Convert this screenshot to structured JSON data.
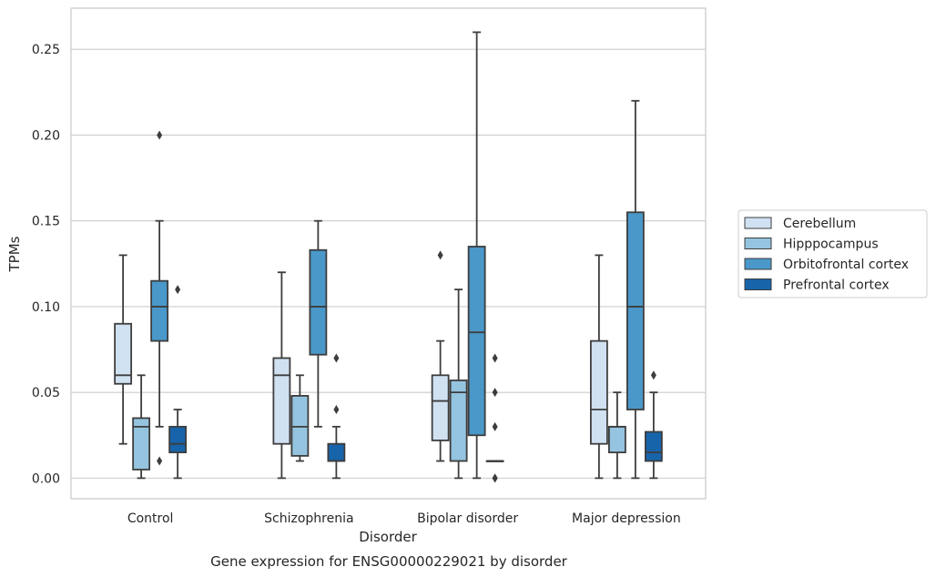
{
  "chart_data": {
    "type": "box",
    "caption": "Gene expression for ENSG00000229021 by disorder",
    "xlabel": "Disorder",
    "ylabel": "TPMs",
    "ylim": [
      -0.012,
      0.274
    ],
    "yticks": [
      0.0,
      0.05,
      0.1,
      0.15,
      0.2,
      0.25
    ],
    "ytick_labels": [
      "0.00",
      "0.05",
      "0.10",
      "0.15",
      "0.20",
      "0.25"
    ],
    "grid": true,
    "legend_position": "right",
    "categories": [
      "Control",
      "Schizophrenia",
      "Bipolar disorder",
      "Major depression"
    ],
    "series": [
      {
        "name": "Cerebellum",
        "color": "#d0e1f2",
        "boxes": [
          {
            "whislo": 0.02,
            "q1": 0.055,
            "med": 0.06,
            "q3": 0.09,
            "whishi": 0.13,
            "fliers": []
          },
          {
            "whislo": 0.0,
            "q1": 0.02,
            "med": 0.06,
            "q3": 0.07,
            "whishi": 0.12,
            "fliers": []
          },
          {
            "whislo": 0.01,
            "q1": 0.022,
            "med": 0.045,
            "q3": 0.06,
            "whishi": 0.08,
            "fliers": [
              0.13
            ]
          },
          {
            "whislo": 0.0,
            "q1": 0.02,
            "med": 0.04,
            "q3": 0.08,
            "whishi": 0.13,
            "fliers": []
          }
        ]
      },
      {
        "name": "Hipppocampus",
        "color": "#94c4df",
        "boxes": [
          {
            "whislo": 0.0,
            "q1": 0.005,
            "med": 0.03,
            "q3": 0.035,
            "whishi": 0.06,
            "fliers": []
          },
          {
            "whislo": 0.01,
            "q1": 0.013,
            "med": 0.03,
            "q3": 0.048,
            "whishi": 0.06,
            "fliers": []
          },
          {
            "whislo": 0.0,
            "q1": 0.01,
            "med": 0.05,
            "q3": 0.057,
            "whishi": 0.11,
            "fliers": []
          },
          {
            "whislo": 0.0,
            "q1": 0.015,
            "med": 0.03,
            "q3": 0.03,
            "whishi": 0.05,
            "fliers": []
          }
        ]
      },
      {
        "name": "Orbitofrontal cortex",
        "color": "#4a98c9",
        "boxes": [
          {
            "whislo": 0.03,
            "q1": 0.08,
            "med": 0.1,
            "q3": 0.115,
            "whishi": 0.15,
            "fliers": [
              0.2,
              0.01
            ]
          },
          {
            "whislo": 0.03,
            "q1": 0.072,
            "med": 0.1,
            "q3": 0.133,
            "whishi": 0.15,
            "fliers": []
          },
          {
            "whislo": 0.0,
            "q1": 0.025,
            "med": 0.085,
            "q3": 0.135,
            "whishi": 0.26,
            "fliers": []
          },
          {
            "whislo": 0.0,
            "q1": 0.04,
            "med": 0.1,
            "q3": 0.155,
            "whishi": 0.22,
            "fliers": []
          }
        ]
      },
      {
        "name": "Prefrontal cortex",
        "color": "#1764ab",
        "boxes": [
          {
            "whislo": 0.0,
            "q1": 0.015,
            "med": 0.02,
            "q3": 0.03,
            "whishi": 0.04,
            "fliers": [
              0.11
            ]
          },
          {
            "whislo": 0.0,
            "q1": 0.01,
            "med": 0.01,
            "q3": 0.02,
            "whishi": 0.03,
            "fliers": [
              0.07,
              0.04
            ]
          },
          {
            "whislo": 0.01,
            "q1": 0.01,
            "med": 0.01,
            "q3": 0.01,
            "whishi": 0.01,
            "fliers": [
              0.07,
              0.05,
              0.03,
              0.0,
              0.0
            ]
          },
          {
            "whislo": 0.0,
            "q1": 0.01,
            "med": 0.015,
            "q3": 0.027,
            "whishi": 0.05,
            "fliers": [
              0.06
            ]
          }
        ]
      }
    ]
  }
}
